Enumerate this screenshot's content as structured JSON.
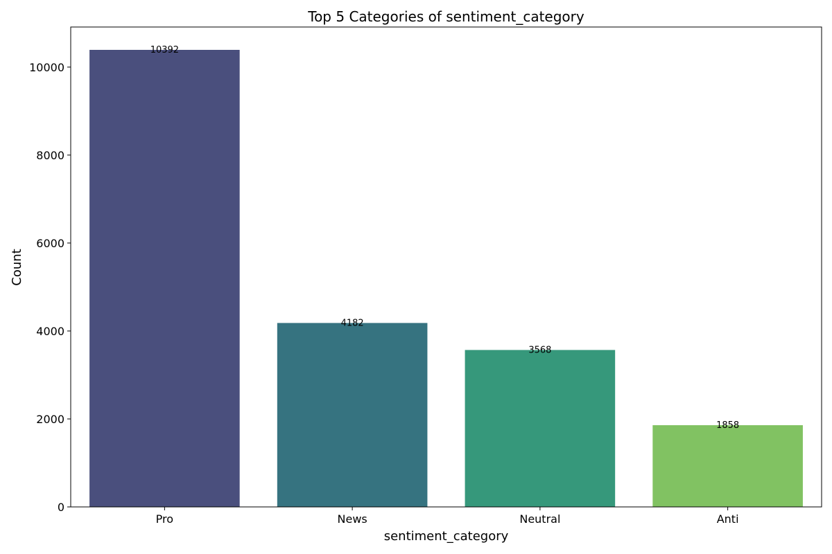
{
  "chart_data": {
    "type": "bar",
    "title": "Top 5 Categories of sentiment_category",
    "xlabel": "sentiment_category",
    "ylabel": "Count",
    "categories": [
      "Pro",
      "News",
      "Neutral",
      "Anti"
    ],
    "values": [
      10392,
      4182,
      3568,
      1858
    ],
    "colors": [
      "#4a4f7d",
      "#367380",
      "#36987b",
      "#81c262"
    ],
    "data_labels": [
      "10392",
      "4182",
      "3568",
      "1858"
    ],
    "ylim": [
      0,
      10911.6
    ],
    "yticks": [
      0,
      2000,
      4000,
      6000,
      8000,
      10000
    ],
    "ytick_labels": [
      "0",
      "2000",
      "4000",
      "6000",
      "8000",
      "10000"
    ],
    "grid": false,
    "legend": "none"
  }
}
